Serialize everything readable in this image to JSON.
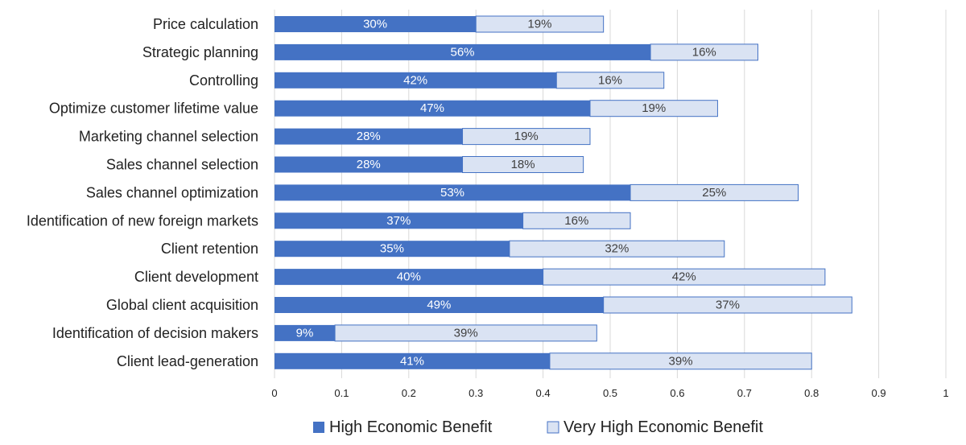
{
  "chart_data": {
    "type": "bar",
    "orientation": "horizontal",
    "stacked": true,
    "categories": [
      "Price calculation",
      "Strategic planning",
      "Controlling",
      "Optimize customer lifetime value",
      "Marketing channel selection",
      "Sales channel selection",
      "Sales channel optimization",
      "Identification of new foreign markets",
      "Client retention",
      "Client development",
      "Global client acquisition",
      "Identification of decision makers",
      "Client lead-generation"
    ],
    "series": [
      {
        "name": "High Economic Benefit",
        "color": "#4472c4",
        "label_color": "#ffffff",
        "values": [
          0.3,
          0.56,
          0.42,
          0.47,
          0.28,
          0.28,
          0.53,
          0.37,
          0.35,
          0.4,
          0.49,
          0.09,
          0.41
        ],
        "labels": [
          "30%",
          "56%",
          "42%",
          "47%",
          "28%",
          "28%",
          "53%",
          "37%",
          "35%",
          "40%",
          "49%",
          "9%",
          "41%"
        ]
      },
      {
        "name": "Very High Economic Benefit",
        "color": "#dae3f3",
        "border_color": "#4472c4",
        "label_color": "#404040",
        "values": [
          0.19,
          0.16,
          0.16,
          0.19,
          0.19,
          0.18,
          0.25,
          0.16,
          0.32,
          0.42,
          0.37,
          0.39,
          0.39
        ],
        "labels": [
          "19%",
          "16%",
          "16%",
          "19%",
          "19%",
          "18%",
          "25%",
          "16%",
          "32%",
          "42%",
          "37%",
          "39%",
          "39%"
        ]
      }
    ],
    "xlim": [
      0,
      1
    ],
    "xticks": [
      "0",
      "0.1",
      "0.2",
      "0.3",
      "0.4",
      "0.5",
      "0.6",
      "0.7",
      "0.8",
      "0.9",
      "1"
    ],
    "grid": "vertical",
    "legend_position": "bottom"
  }
}
